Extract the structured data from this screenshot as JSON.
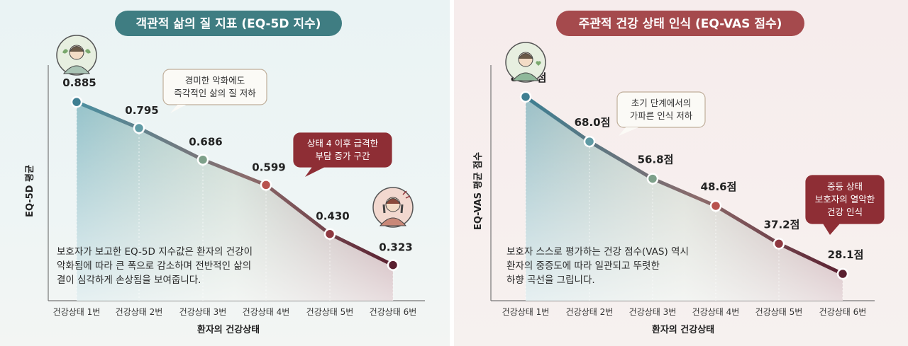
{
  "chart_data": [
    {
      "type": "area",
      "title": "객관적 삶의 질 지표 (EQ-5D 지수)",
      "xlabel": "환자의 건강상태",
      "ylabel": "EQ-5D 평균",
      "categories": [
        "건강상태 1번",
        "건강상태 2번",
        "건강상태 3번",
        "건강상태 4번",
        "건강상태 5번",
        "건강상태 6번"
      ],
      "values": [
        0.885,
        0.795,
        0.686,
        0.599,
        0.43,
        0.323
      ],
      "value_labels": [
        "0.885",
        "0.795",
        "0.686",
        "0.599",
        "0.430",
        "0.323"
      ],
      "ylim": [
        0.2,
        1.0
      ],
      "grid": false,
      "annotations": [
        {
          "lines": [
            "경미한 악화에도",
            "즉각적인 삶의 질 저하"
          ]
        },
        {
          "lines": [
            "상태 4 이후 급격한",
            "부담 증가 구간"
          ]
        }
      ],
      "description": [
        "보호자가 보고한 EQ-5D 지수값은 환자의 건강이",
        "악화됨에 따라 큰 폭으로 감소하며 전반적인 삶의",
        "결이 심각하게 손상됨을 보여줍니다."
      ],
      "colors": {
        "title_bg": "#3f7d82",
        "line_start": "#4a8fa0",
        "line_end": "#5a2030",
        "callout_dark": "#8e2e35"
      }
    },
    {
      "type": "area",
      "title": "주관적 건강 상태 인식 (EQ-VAS 점수)",
      "xlabel": "환자의 건강상태",
      "ylabel": "EQ-VAS 평균 점수",
      "categories": [
        "건강상태 1번",
        "건강상태 2번",
        "건강상태 3번",
        "건강상태 4번",
        "건강상태 5번",
        "건강상태 6번"
      ],
      "values": [
        81.5,
        68.0,
        56.8,
        48.6,
        37.2,
        28.1
      ],
      "value_labels": [
        "81.5점",
        "68.0점",
        "56.8점",
        "48.6점",
        "37.2점",
        "28.1점"
      ],
      "ylim": [
        20,
        90
      ],
      "grid": false,
      "annotations": [
        {
          "lines": [
            "초기 단계에서의",
            "가파른 인식 저하"
          ]
        },
        {
          "lines": [
            "중등 상태",
            "보호자의 열악한",
            "건강 인식"
          ]
        }
      ],
      "description": [
        "보호자 스스로 평가하는 건강 점수(VAS) 역시",
        "환자의 중증도에 따라 일관되고 뚜렷한",
        "하향 곡선을 그립니다."
      ],
      "colors": {
        "title_bg": "#a54a4d",
        "line_start": "#3d7f92",
        "line_end": "#5a2030",
        "callout_dark": "#8e2e35"
      }
    }
  ]
}
